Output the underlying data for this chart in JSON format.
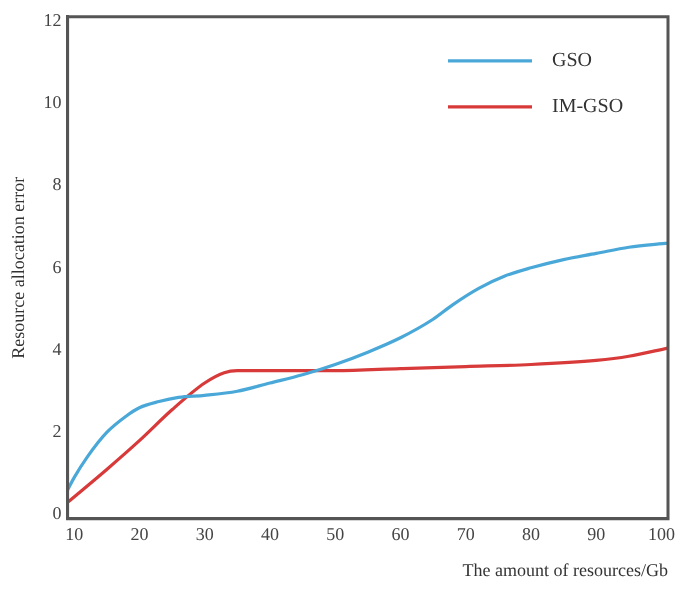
{
  "chart_data": {
    "type": "line",
    "xlabel": "The amount of resources/Gb",
    "ylabel": "Resource allocation error",
    "xlim": [
      9,
      101
    ],
    "xticks": [
      10,
      20,
      30,
      40,
      50,
      60,
      70,
      80,
      90,
      100
    ],
    "ylim": [
      -0.1,
      12.1
    ],
    "yticks": [
      0,
      2,
      4,
      6,
      8,
      10,
      12
    ],
    "grid": false,
    "legend": "top right",
    "marker": "none",
    "line_style": "solid",
    "series": [
      {
        "name": "GSO",
        "color": "#4aa8d8",
        "x": [
          9,
          10,
          12,
          15,
          18,
          20,
          23,
          26,
          30,
          35,
          40,
          45,
          50,
          55,
          60,
          65,
          68,
          72,
          76,
          80,
          85,
          90,
          95,
          101
        ],
        "values": [
          0.6,
          0.9,
          1.4,
          2.0,
          2.4,
          2.6,
          2.75,
          2.85,
          2.9,
          3.0,
          3.2,
          3.4,
          3.65,
          3.95,
          4.3,
          4.75,
          5.1,
          5.5,
          5.8,
          6.0,
          6.2,
          6.35,
          6.5,
          6.6
        ]
      },
      {
        "name": "IM-GSO",
        "color": "#d83a3a",
        "x": [
          9,
          15,
          20,
          25,
          30,
          33,
          35,
          40,
          50,
          60,
          70,
          80,
          90,
          95,
          101
        ],
        "values": [
          0.3,
          1.1,
          1.8,
          2.55,
          3.2,
          3.45,
          3.5,
          3.5,
          3.5,
          3.55,
          3.6,
          3.65,
          3.75,
          3.85,
          4.05
        ]
      }
    ]
  }
}
